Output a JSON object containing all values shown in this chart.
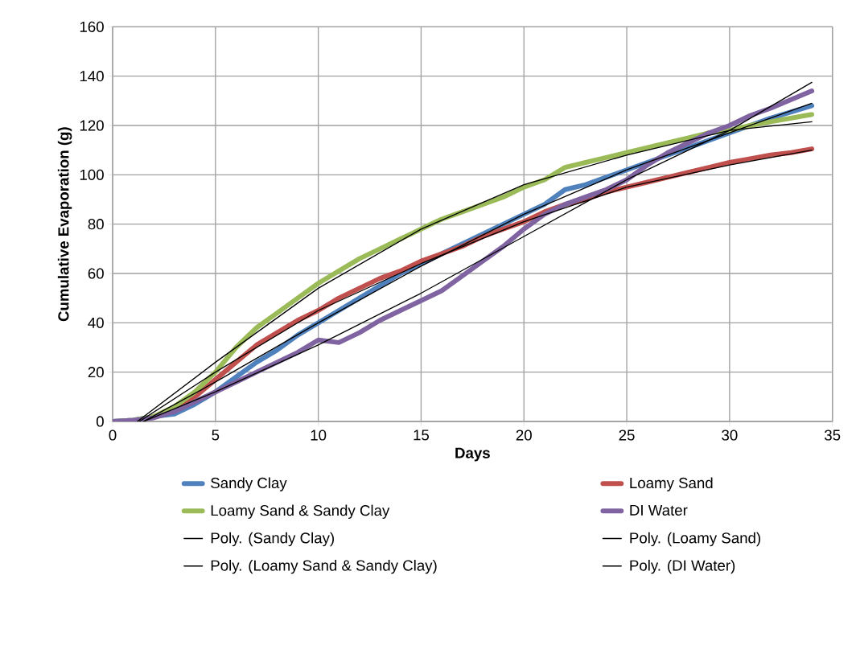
{
  "chart_data": {
    "type": "line",
    "xlabel": "Days",
    "ylabel": "Cumulative Evaporation (g)",
    "x": [
      0,
      1,
      2,
      3,
      4,
      5,
      6,
      7,
      8,
      9,
      10,
      11,
      12,
      13,
      14,
      15,
      16,
      17,
      18,
      19,
      20,
      21,
      22,
      23,
      24,
      25,
      26,
      27,
      28,
      29,
      30,
      31,
      32,
      33,
      34
    ],
    "series": [
      {
        "name": "Sandy Clay",
        "color": "#4f81bd",
        "values": [
          0,
          0.5,
          2,
          3,
          7,
          12,
          18,
          24,
          29,
          35,
          40,
          45,
          50,
          55,
          60,
          64,
          68,
          72,
          76,
          80,
          84,
          88,
          94,
          96,
          99,
          102,
          105,
          108,
          111,
          114,
          117,
          120,
          123,
          125.5,
          128
        ]
      },
      {
        "name": "Loamy Sand",
        "color": "#c0504d",
        "values": [
          null,
          null,
          2,
          5,
          10,
          17,
          24,
          31,
          36,
          41,
          45,
          50,
          54,
          58,
          61,
          65,
          68,
          71,
          75,
          78,
          81,
          85,
          88,
          90,
          93,
          95,
          97,
          99,
          101,
          103,
          105,
          106.5,
          108,
          109,
          110.5
        ]
      },
      {
        "name": "Loamy Sand & Sandy Clay",
        "color": "#9bbb59",
        "values": [
          0,
          0.5,
          2,
          6,
          12,
          20,
          30,
          38,
          44,
          50,
          56,
          61,
          66,
          70,
          74,
          78,
          82,
          85,
          88,
          91,
          95,
          98,
          103,
          105,
          107,
          109,
          111,
          113,
          115,
          117,
          118,
          120,
          121.5,
          123,
          124.5
        ]
      },
      {
        "name": "DI Water",
        "color": "#8064a2",
        "values": [
          0,
          0.5,
          1.5,
          4,
          8,
          12,
          16,
          20,
          24,
          28,
          33,
          32,
          36,
          41,
          45,
          49,
          53,
          59,
          65,
          71,
          78,
          84,
          88,
          91,
          94,
          98,
          104,
          109,
          113,
          117,
          120,
          124,
          127,
          130.5,
          134
        ]
      },
      {
        "name": "Poly. (Sandy Clay)",
        "color": "#000000",
        "x": [
          1.5,
          5,
          10,
          15,
          20,
          25,
          30,
          34
        ],
        "values": [
          0,
          16,
          40,
          63,
          84,
          102,
          117,
          129
        ]
      },
      {
        "name": "Poly. (Loamy Sand)",
        "color": "#000000",
        "x": [
          1.3,
          5,
          10,
          15,
          20,
          25,
          30,
          34
        ],
        "values": [
          0,
          20,
          45,
          64,
          81,
          95,
          104,
          110
        ]
      },
      {
        "name": "Poly. (Loamy Sand & Sandy Clay)",
        "color": "#000000",
        "x": [
          1.2,
          5,
          10,
          15,
          20,
          25,
          30,
          34
        ],
        "values": [
          0,
          24,
          54,
          78,
          96,
          108,
          118,
          121.5
        ]
      },
      {
        "name": "Poly. (DI Water)",
        "color": "#000000",
        "x": [
          1.5,
          5,
          10,
          15,
          20,
          25,
          30,
          34
        ],
        "values": [
          0,
          12,
          31,
          52,
          75,
          98,
          118,
          137.5
        ]
      }
    ],
    "xlim": [
      0,
      35
    ],
    "ylim": [
      0,
      160
    ],
    "xticks": [
      0,
      5,
      10,
      15,
      20,
      25,
      30,
      35
    ],
    "yticks": [
      0,
      20,
      40,
      60,
      80,
      100,
      120,
      140,
      160
    ],
    "grid": true,
    "legend": "bottom",
    "marker": "none",
    "line_style": "solid"
  }
}
